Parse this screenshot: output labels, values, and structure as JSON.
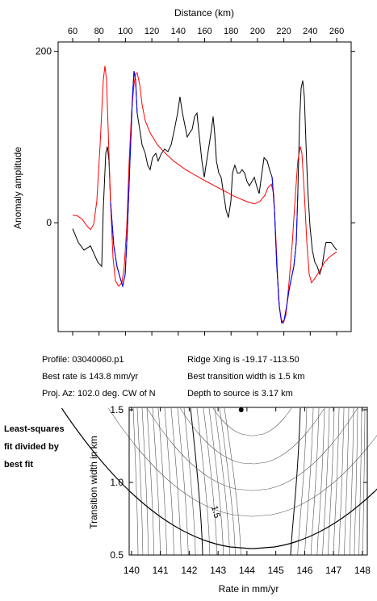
{
  "chart_data": [
    {
      "type": "line",
      "x_label": "Distance (km)",
      "y_label": "Anomaly amplitude",
      "xlim": [
        49,
        271
      ],
      "ylim": [
        -127,
        211
      ],
      "xticks": [
        60,
        80,
        100,
        120,
        140,
        160,
        180,
        200,
        220,
        240,
        260
      ],
      "yticks": [
        0,
        200
      ],
      "series": [
        {
          "color": "#000000",
          "x": [
            60,
            64.3,
            68.6,
            73.5,
            79,
            82,
            83.2,
            85.1,
            86.3,
            87.5,
            88.7,
            91.2,
            93.6,
            96.1,
            97.9,
            99.8,
            101.6,
            103.4,
            105.3,
            106.5,
            107.7,
            108.9,
            110.8,
            112.6,
            115,
            116.9,
            118.7,
            120.5,
            123,
            124.8,
            127.3,
            129.7,
            132.2,
            134.6,
            137.1,
            139.5,
            141.3,
            143.2,
            145,
            146.8,
            148.7,
            150.5,
            152.4,
            154.2,
            156,
            157.9,
            159.7,
            161.5,
            163.4,
            165.2,
            166.4,
            167.6,
            168.9,
            170.7,
            172.5,
            174.4,
            176.2,
            178,
            179.9,
            181.1,
            182.9,
            184.8,
            186.6,
            188.4,
            190.3,
            192.1,
            193.9,
            195.8,
            197.6,
            199.4,
            201.3,
            203.1,
            205,
            207.4,
            209.2,
            211.1,
            212.9,
            214.7,
            216.6,
            218.4,
            220.2,
            222.1,
            223.9,
            225.7,
            227.6,
            229.4,
            230.6,
            231.9,
            233.1,
            234.3,
            235.5,
            236.8,
            238,
            239.8,
            241.6,
            243.5,
            245.3,
            247.2,
            249,
            250.8,
            252,
            255.7,
            260
          ],
          "values": [
            -7,
            -23,
            -32,
            -27,
            -46,
            -51,
            15,
            81,
            89,
            72,
            25,
            -27,
            -51,
            -65,
            -74,
            -60,
            -4,
            72,
            147,
            177,
            166,
            128,
            109,
            91,
            81,
            67,
            62,
            76,
            81,
            72,
            81,
            86,
            83,
            91,
            109,
            128,
            147,
            128,
            114,
            100,
            105,
            109,
            124,
            128,
            100,
            72,
            53,
            72,
            91,
            109,
            124,
            105,
            72,
            58,
            53,
            34,
            15,
            6,
            25,
            58,
            67,
            58,
            58,
            62,
            58,
            48,
            43,
            48,
            53,
            43,
            34,
            55,
            76,
            72,
            62,
            53,
            15,
            -51,
            -98,
            -117,
            -114,
            -98,
            -79,
            -65,
            -51,
            -23,
            34,
            119,
            157,
            166,
            147,
            91,
            43,
            -4,
            -32,
            -46,
            -51,
            -60,
            -51,
            -32,
            -23,
            -23,
            -32
          ]
        },
        {
          "color": "#ff0000",
          "x": [
            60,
            63.7,
            67.3,
            71,
            73.5,
            75.9,
            78.3,
            80.8,
            83.2,
            84.5,
            85.7,
            86.9,
            88.7,
            90.6,
            92.4,
            94.9,
            97.3,
            99.1,
            101,
            102.8,
            104.6,
            106.5,
            107.7,
            108.9,
            110.8,
            112.6,
            115,
            118.7,
            124.2,
            130.3,
            136.5,
            145.6,
            157.9,
            170.1,
            182.3,
            191.5,
            197.6,
            201.9,
            205.6,
            208,
            210.5,
            212.3,
            214.1,
            216,
            217.8,
            219.6,
            221.5,
            223.9,
            226.4,
            228.8,
            230.6,
            232.5,
            233.7,
            235.5,
            237.4,
            239.2,
            241,
            243.5,
            247.2,
            250.8,
            254.5,
            260
          ],
          "values": [
            9,
            8,
            4,
            -4,
            -8,
            -2,
            25,
            91,
            166,
            183,
            166,
            109,
            25,
            -41,
            -68,
            -74,
            -70,
            -51,
            -4,
            72,
            128,
            161,
            174,
            175,
            161,
            138,
            119,
            105,
            91,
            81,
            72,
            62,
            51,
            41,
            31,
            25,
            22,
            25,
            32,
            41,
            45,
            34,
            -23,
            -89,
            -112,
            -117,
            -108,
            -70,
            -23,
            34,
            72,
            89,
            81,
            34,
            -23,
            -60,
            -70,
            -65,
            -56,
            -46,
            -40,
            -34
          ]
        },
        {
          "color": "#0000ff",
          "x": [
            88.7,
            91.2,
            93.6,
            96.1,
            97.9,
            99.8,
            101.6,
            103.4,
            105.3,
            106.5,
            107.7,
            108.9,
            null,
            211.1,
            212.9,
            214.7,
            216.6,
            218.4,
            220.2,
            222.1,
            223.9,
            225.7,
            227.6,
            229.4,
            230.6
          ],
          "values": [
            25,
            -27,
            -51,
            -65,
            -74,
            -60,
            -4,
            72,
            147,
            177,
            166,
            128,
            null,
            53,
            15,
            -51,
            -98,
            -117,
            -114,
            -98,
            -79,
            -65,
            -51,
            -23,
            34
          ]
        }
      ]
    },
    {
      "type": "contour",
      "x_label": "Rate in mm/yr",
      "y_label": "Transition width in km",
      "xlim": [
        139.92,
        148.17
      ],
      "ylim": [
        0.5,
        1.5
      ],
      "xticks": [
        140,
        141,
        142,
        143,
        144,
        145,
        146,
        147,
        148
      ],
      "yticks": [
        0.5,
        {
          "value": 1,
          "label": "1.0"
        },
        1.5
      ],
      "best_fit": {
        "x": 143.8,
        "y": 1.5
      },
      "contour_label": "1.5"
    }
  ],
  "info": {
    "left": [
      "Profile: 03040060.p1",
      "Best rate is 143.8 mm/yr",
      "Proj. Az: 102.0 deg. CW of N"
    ],
    "right": [
      "Ridge Xing is -19.17 -113.50",
      "Best transition width is 1.5 km",
      "Depth to source is   3.17 km"
    ]
  },
  "note": [
    "Least-squares",
    "fit divided by",
    "best fit"
  ]
}
